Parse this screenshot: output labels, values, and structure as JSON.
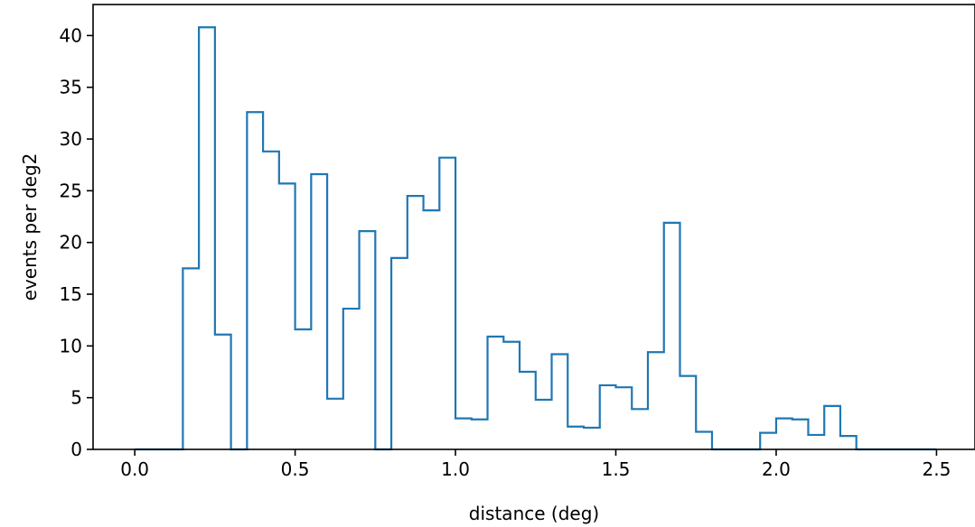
{
  "chart_data": {
    "type": "histogram",
    "title": "",
    "xlabel": "distance (deg)",
    "ylabel": "events per deg2",
    "xlim": [
      -0.13,
      2.62
    ],
    "ylim": [
      0,
      43
    ],
    "grid": false,
    "legend": "none",
    "color": "#1f77b4",
    "x_ticks": [
      0.0,
      0.5,
      1.0,
      1.5,
      2.0,
      2.5
    ],
    "x_tick_labels": [
      "0.0",
      "0.5",
      "1.0",
      "1.5",
      "2.0",
      "2.5"
    ],
    "y_ticks": [
      0,
      5,
      10,
      15,
      20,
      25,
      30,
      35,
      40
    ],
    "y_tick_labels": [
      "0",
      "5",
      "10",
      "15",
      "20",
      "25",
      "30",
      "35",
      "40"
    ],
    "bin_edges": [
      0.0,
      0.05,
      0.1,
      0.15,
      0.2,
      0.25,
      0.3,
      0.35,
      0.4,
      0.45,
      0.5,
      0.55,
      0.6,
      0.65,
      0.7,
      0.75,
      0.8,
      0.85,
      0.9,
      0.95,
      1.0,
      1.05,
      1.1,
      1.15,
      1.2,
      1.25,
      1.3,
      1.35,
      1.4,
      1.45,
      1.5,
      1.55,
      1.6,
      1.65,
      1.7,
      1.75,
      1.8,
      1.85,
      1.9,
      1.95,
      2.0,
      2.05,
      2.1,
      2.15,
      2.2,
      2.25,
      2.3,
      2.35,
      2.4,
      2.45,
      2.5
    ],
    "values": [
      0,
      0,
      0,
      17.5,
      40.8,
      11.1,
      0,
      32.6,
      28.8,
      25.7,
      11.6,
      26.6,
      4.9,
      13.6,
      21.1,
      0,
      18.5,
      24.5,
      23.1,
      28.2,
      3.0,
      2.9,
      10.9,
      10.4,
      7.5,
      4.8,
      9.2,
      2.2,
      2.1,
      6.2,
      6.0,
      3.9,
      9.4,
      21.9,
      7.1,
      1.7,
      0,
      0,
      0,
      1.6,
      3.0,
      2.9,
      1.4,
      4.2,
      1.3,
      0,
      0,
      0,
      0,
      0
    ]
  }
}
